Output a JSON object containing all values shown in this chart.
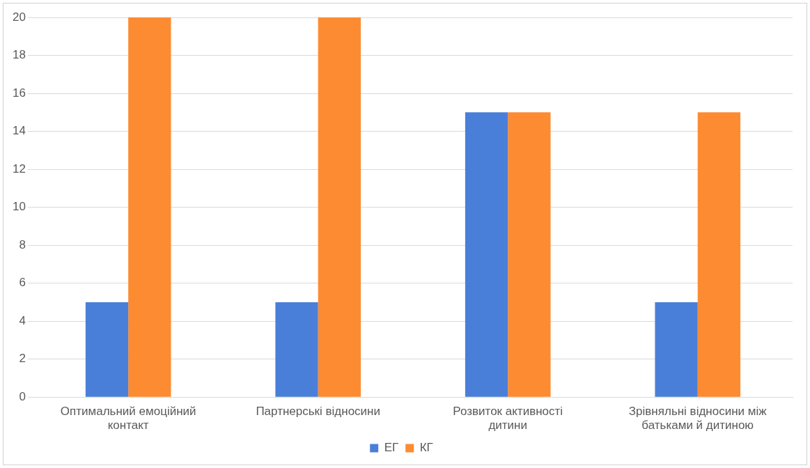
{
  "chart_data": {
    "type": "bar",
    "categories": [
      "Оптимальний емоційний контакт",
      "Партнерські відносини",
      "Розвиток активності дитини",
      "Зрівняльні відносини між батьками й дитиною"
    ],
    "series": [
      {
        "name": "ЕГ",
        "color": "#4a7fd9",
        "values": [
          5,
          5,
          15,
          5
        ]
      },
      {
        "name": "КГ",
        "color": "#fd8b32",
        "values": [
          20,
          20,
          15,
          15
        ]
      }
    ],
    "ylim": [
      0,
      20
    ],
    "yticks": [
      0,
      2,
      4,
      6,
      8,
      10,
      12,
      14,
      16,
      18,
      20
    ],
    "grid": "y",
    "legend": "bottom"
  }
}
